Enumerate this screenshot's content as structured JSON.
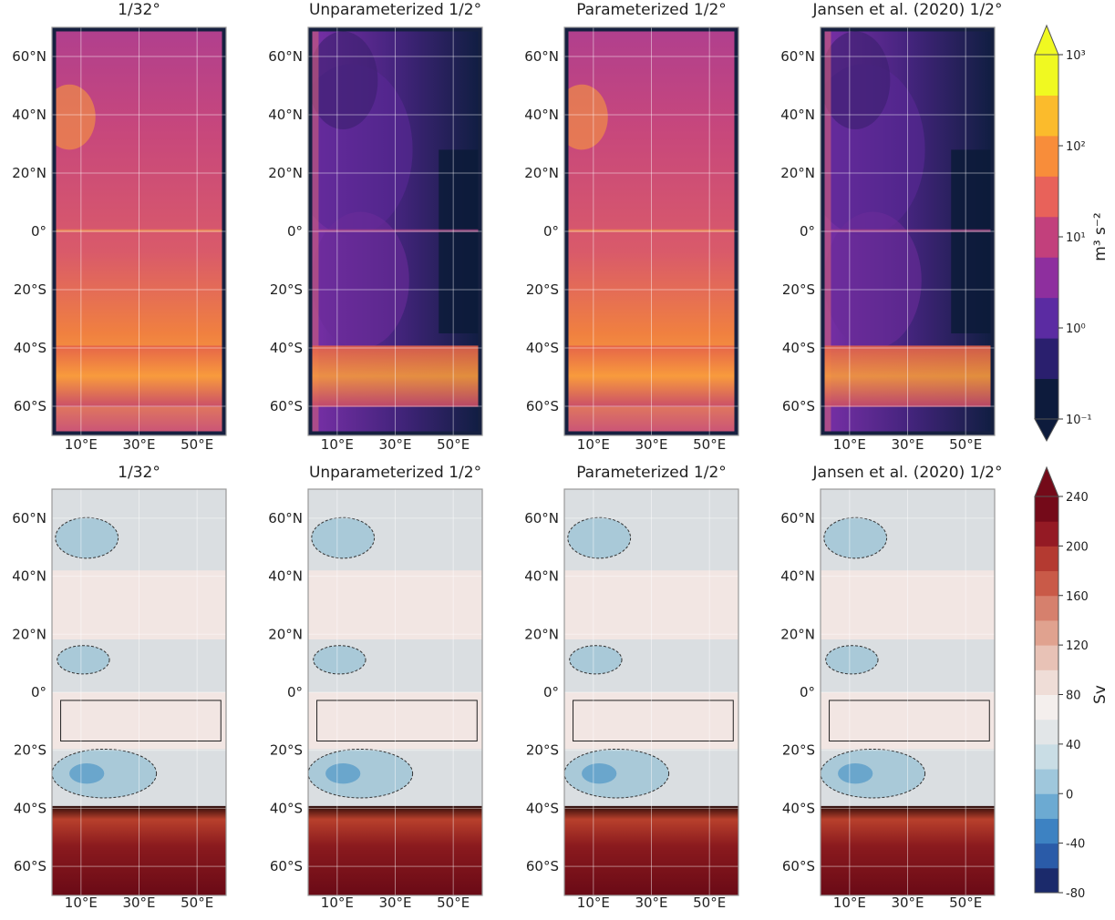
{
  "axes": {
    "xlim": [
      0,
      60
    ],
    "ylim": [
      -70,
      70
    ],
    "xticks": [
      {
        "value": 10,
        "label": "10°E"
      },
      {
        "value": 30,
        "label": "30°E"
      },
      {
        "value": 50,
        "label": "50°E"
      }
    ],
    "yticks": [
      {
        "value": 60,
        "label": "60°N"
      },
      {
        "value": 40,
        "label": "40°N"
      },
      {
        "value": 20,
        "label": "20°N"
      },
      {
        "value": 0,
        "label": "0°"
      },
      {
        "value": -20,
        "label": "20°S"
      },
      {
        "value": -40,
        "label": "40°S"
      },
      {
        "value": -60,
        "label": "60°S"
      }
    ]
  },
  "rows": [
    {
      "panels": [
        {
          "title": "1/32°"
        },
        {
          "title": "Unparameterized 1/2°"
        },
        {
          "title": "Parameterized 1/2°"
        },
        {
          "title": "Jansen et al. (2020) 1/2°"
        }
      ],
      "colorbar": {
        "label": "m³ s⁻²",
        "log": true,
        "lim": [
          0.1,
          1000
        ],
        "ticks": [
          {
            "value": 1000,
            "label": "10³"
          },
          {
            "value": 100,
            "label": "10²"
          },
          {
            "value": 10,
            "label": "10¹"
          },
          {
            "value": 1,
            "label": "10⁰"
          },
          {
            "value": 0.1,
            "label": "10⁻¹"
          }
        ],
        "colors": [
          "#0d1b3c",
          "#2a1f6e",
          "#5b2ba2",
          "#8e2f9e",
          "#c2407c",
          "#e8625a",
          "#f88d3a",
          "#fbbb2c",
          "#f0f921"
        ]
      }
    },
    {
      "panels": [
        {
          "title": "1/32°"
        },
        {
          "title": "Unparameterized 1/2°"
        },
        {
          "title": "Parameterized 1/2°"
        },
        {
          "title": "Jansen et al. (2020) 1/2°"
        }
      ],
      "colorbar": {
        "label": "Sv",
        "log": false,
        "lim": [
          -80,
          240
        ],
        "ticks": [
          240,
          200,
          160,
          120,
          80,
          40,
          0,
          -40,
          -80
        ],
        "colors": [
          "#1b2a6b",
          "#2a5ba8",
          "#3d82c2",
          "#6caad2",
          "#9fc7dc",
          "#c9dde5",
          "#e2e6e8",
          "#f4efed",
          "#efddd7",
          "#e8c2b6",
          "#e0a28f",
          "#d6806d",
          "#c95a48",
          "#b43a31",
          "#941a24",
          "#740a19"
        ]
      }
    }
  ]
}
